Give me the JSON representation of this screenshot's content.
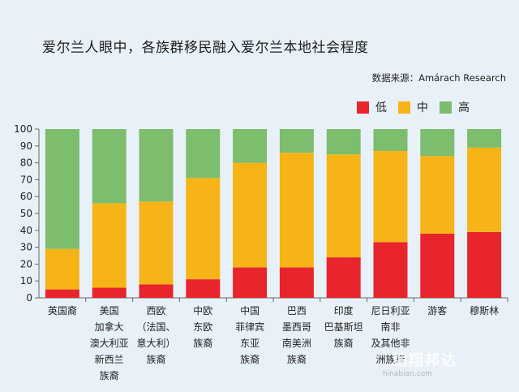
{
  "title": "爱尔兰人眼中，各族群移民融入爱尔兰本地社会程度",
  "source": "数据来源：Amárach Research",
  "watermark": {
    "text": "编翔邦达",
    "sub": "hinabian.com"
  },
  "colors": {
    "low": "#e8242c",
    "mid": "#f7b417",
    "high": "#7dbd6e"
  },
  "chart_data": {
    "type": "bar",
    "stacked": true,
    "title": "爱尔兰人眼中，各族群移民融入爱尔兰本地社会程度",
    "ylim": [
      0,
      100
    ],
    "yticks": [
      0,
      10,
      20,
      30,
      40,
      50,
      60,
      70,
      80,
      90,
      100
    ],
    "legend_position": "top-right",
    "categories": [
      "英国裔",
      "美国\n加拿大\n澳大利亚\n新西兰\n族裔",
      "西欧\n（法国、\n意大利）\n族裔",
      "中欧\n东欧\n族裔",
      "中国\n菲律宾\n东亚\n族裔",
      "巴西\n墨西哥\n南美洲\n族裔",
      "印度\n巴基斯坦\n族裔",
      "尼日利亚\n南非\n及其他非\n洲族裔",
      "游客",
      "穆斯林"
    ],
    "series": [
      {
        "name": "低",
        "values": [
          5,
          6,
          8,
          11,
          18,
          18,
          24,
          33,
          38,
          39
        ]
      },
      {
        "name": "中",
        "values": [
          24,
          50,
          49,
          60,
          62,
          68,
          61,
          54,
          46,
          50
        ]
      },
      {
        "name": "高",
        "values": [
          71,
          44,
          43,
          29,
          20,
          14,
          15,
          13,
          16,
          11
        ]
      }
    ]
  }
}
